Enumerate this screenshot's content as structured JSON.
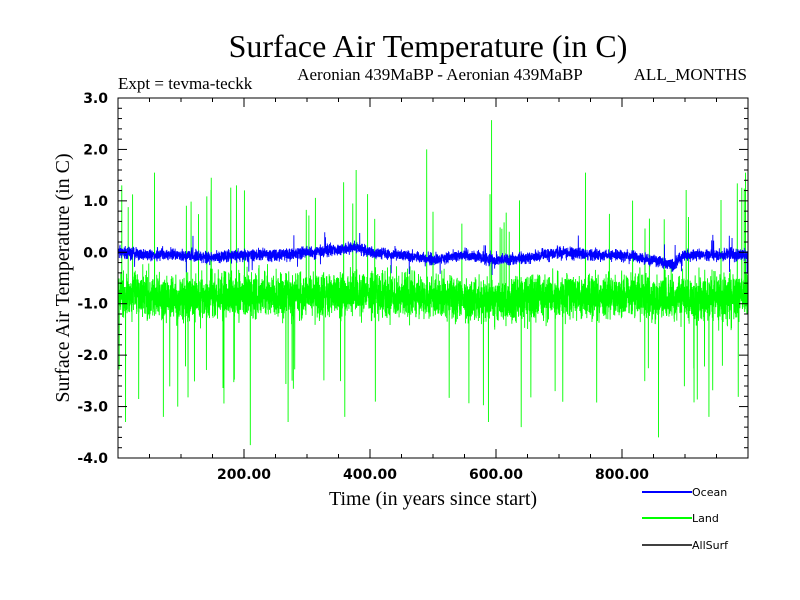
{
  "chart_data": {
    "type": "line",
    "title": "Surface Air Temperature (in C)",
    "subtitle_left": "Expt = tevma-teckk",
    "subtitle_center": "Aeronian 439MaBP - Aeronian 439MaBP",
    "subtitle_right": "ALL_MONTHS",
    "xlabel": "Time (in years since start)",
    "ylabel": "Surface Air Temperature (in C)",
    "xlim": [
      0,
      1000
    ],
    "ylim": [
      -4.0,
      3.0
    ],
    "xticks": [
      200,
      400,
      600,
      800
    ],
    "xtick_labels": [
      "200.00",
      "400.00",
      "600.00",
      "800.00"
    ],
    "yticks": [
      3.0,
      2.0,
      1.0,
      0.0,
      -1.0,
      -2.0,
      -3.0,
      -4.0
    ],
    "ytick_labels": [
      "3.0",
      "2.0",
      "1.0",
      "0.0",
      "-1.0",
      "-2.0",
      "-3.0",
      "-4.0"
    ],
    "legend_position": "bottom-right, below plot",
    "series": [
      {
        "name": "Land",
        "color": "#00ff00",
        "mean": -0.85,
        "typical_min": -2.0,
        "typical_max": 0.2,
        "extreme_min": -3.75,
        "extreme_max": 2.57,
        "notable_peaks": [
          [
            6,
            1.3
          ],
          [
            58,
            1.55
          ],
          [
            148,
            1.45
          ],
          [
            188,
            1.3
          ],
          [
            378,
            1.6
          ],
          [
            490,
            2.0
          ],
          [
            593,
            2.57
          ],
          [
            742,
            1.55
          ],
          [
            996,
            1.55
          ]
        ],
        "notable_troughs": [
          [
            12,
            -3.3
          ],
          [
            72,
            -3.2
          ],
          [
            210,
            -3.75
          ],
          [
            270,
            -3.3
          ],
          [
            360,
            -3.2
          ],
          [
            588,
            -3.3
          ],
          [
            640,
            -3.4
          ],
          [
            858,
            -3.6
          ],
          [
            938,
            -3.2
          ]
        ],
        "anchors": [
          [
            0,
            -0.8
          ],
          [
            100,
            -0.9
          ],
          [
            200,
            -0.85
          ],
          [
            300,
            -0.85
          ],
          [
            400,
            -0.8
          ],
          [
            500,
            -0.85
          ],
          [
            600,
            -0.95
          ],
          [
            700,
            -0.85
          ],
          [
            800,
            -0.85
          ],
          [
            900,
            -0.9
          ],
          [
            1000,
            -0.85
          ]
        ]
      },
      {
        "name": "Ocean",
        "color": "#0000ff",
        "mean": -0.05,
        "typical_min": -0.4,
        "typical_max": 0.25,
        "extreme_min": -0.6,
        "extreme_max": 0.45,
        "anchors": [
          [
            0,
            0.0
          ],
          [
            50,
            -0.05
          ],
          [
            100,
            -0.05
          ],
          [
            150,
            -0.1
          ],
          [
            200,
            -0.05
          ],
          [
            250,
            -0.05
          ],
          [
            300,
            0.0
          ],
          [
            350,
            0.05
          ],
          [
            380,
            0.1
          ],
          [
            400,
            0.0
          ],
          [
            450,
            -0.05
          ],
          [
            500,
            -0.15
          ],
          [
            550,
            -0.05
          ],
          [
            600,
            -0.15
          ],
          [
            650,
            -0.1
          ],
          [
            700,
            0.0
          ],
          [
            750,
            -0.05
          ],
          [
            800,
            -0.05
          ],
          [
            850,
            -0.15
          ],
          [
            880,
            -0.25
          ],
          [
            900,
            -0.05
          ],
          [
            950,
            -0.05
          ],
          [
            1000,
            -0.05
          ]
        ]
      },
      {
        "name": "AllSurf",
        "color": "#000000"
      }
    ]
  }
}
